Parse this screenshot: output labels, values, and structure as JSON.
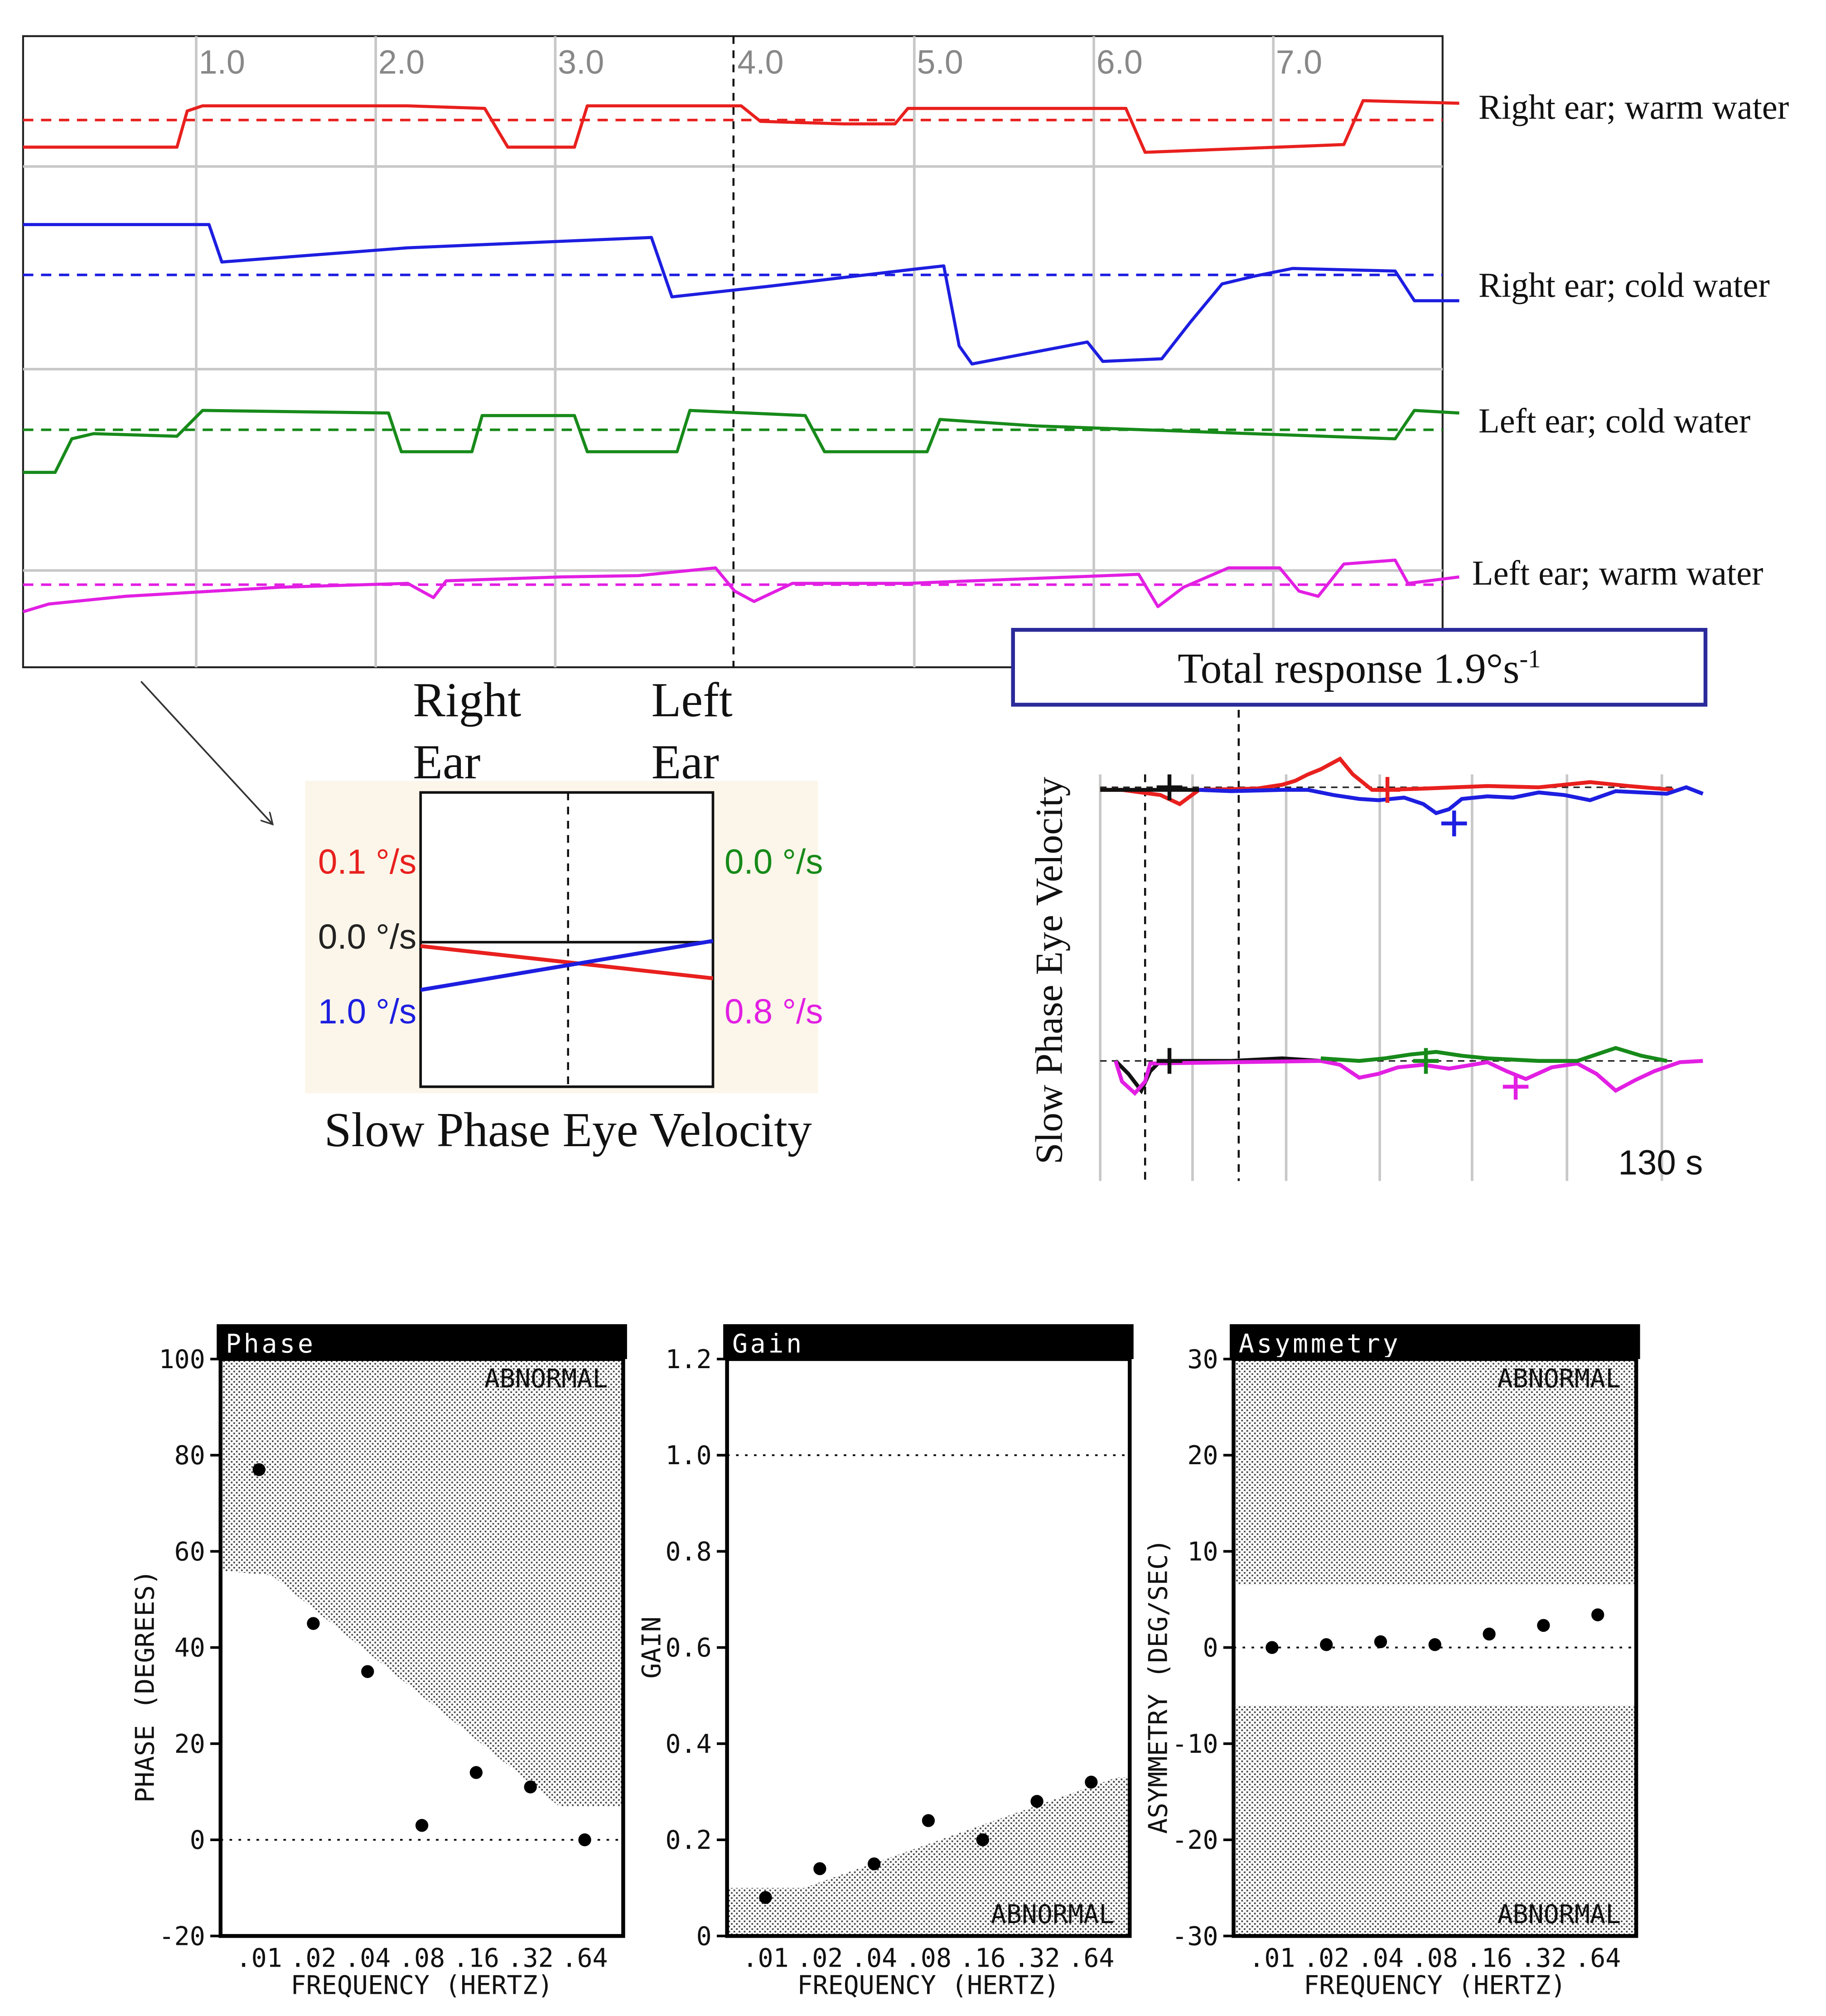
{
  "caloric_traces": {
    "x_ticks": [
      "1.0",
      "2.0",
      "3.0",
      "4.0",
      "5.0",
      "6.0",
      "7.0"
    ],
    "marker_at": "4.0",
    "traces": [
      {
        "label": "Right ear; warm water",
        "color": "#e8201e",
        "baseline_y": 93,
        "pts": [
          [
            0,
            114
          ],
          [
            120,
            114
          ],
          [
            128,
            86
          ],
          [
            140,
            82
          ],
          [
            300,
            82
          ],
          [
            360,
            84
          ],
          [
            378,
            114
          ],
          [
            430,
            114
          ],
          [
            440,
            82
          ],
          [
            560,
            82
          ],
          [
            575,
            94
          ],
          [
            640,
            96
          ],
          [
            680,
            96
          ],
          [
            690,
            84
          ],
          [
            860,
            84
          ],
          [
            875,
            118
          ],
          [
            1030,
            112
          ],
          [
            1045,
            78
          ],
          [
            1120,
            80
          ]
        ]
      },
      {
        "label": "Right ear; cold water",
        "color": "#1d1ee0",
        "baseline_y": 213,
        "pts": [
          [
            0,
            174
          ],
          [
            145,
            174
          ],
          [
            155,
            203
          ],
          [
            300,
            192
          ],
          [
            490,
            184
          ],
          [
            506,
            230
          ],
          [
            580,
            222
          ],
          [
            700,
            208
          ],
          [
            718,
            206
          ],
          [
            730,
            268
          ],
          [
            740,
            282
          ],
          [
            830,
            265
          ],
          [
            842,
            280
          ],
          [
            888,
            278
          ],
          [
            910,
            250
          ],
          [
            935,
            220
          ],
          [
            960,
            214
          ],
          [
            990,
            208
          ],
          [
            1070,
            210
          ],
          [
            1085,
            233
          ],
          [
            1120,
            233
          ]
        ]
      },
      {
        "label": "Left ear; cold water",
        "color": "#178a1a",
        "baseline_y": 333,
        "pts": [
          [
            0,
            366
          ],
          [
            25,
            366
          ],
          [
            38,
            340
          ],
          [
            55,
            336
          ],
          [
            120,
            338
          ],
          [
            140,
            318
          ],
          [
            285,
            320
          ],
          [
            295,
            350
          ],
          [
            350,
            350
          ],
          [
            358,
            322
          ],
          [
            430,
            322
          ],
          [
            440,
            350
          ],
          [
            510,
            350
          ],
          [
            520,
            318
          ],
          [
            610,
            322
          ],
          [
            625,
            350
          ],
          [
            705,
            350
          ],
          [
            715,
            325
          ],
          [
            790,
            330
          ],
          [
            1070,
            340
          ],
          [
            1085,
            318
          ],
          [
            1120,
            320
          ]
        ]
      },
      {
        "label": "Left ear; warm water",
        "color": "#e21fe3",
        "baseline_y": 453,
        "pts": [
          [
            0,
            474
          ],
          [
            20,
            468
          ],
          [
            80,
            462
          ],
          [
            200,
            455
          ],
          [
            300,
            452
          ],
          [
            320,
            463
          ],
          [
            330,
            450
          ],
          [
            420,
            447
          ],
          [
            480,
            446
          ],
          [
            540,
            440
          ],
          [
            555,
            458
          ],
          [
            570,
            466
          ],
          [
            600,
            452
          ],
          [
            690,
            452
          ],
          [
            870,
            445
          ],
          [
            885,
            470
          ],
          [
            905,
            455
          ],
          [
            940,
            440
          ],
          [
            980,
            440
          ],
          [
            995,
            458
          ],
          [
            1010,
            462
          ],
          [
            1030,
            437
          ],
          [
            1070,
            434
          ],
          [
            1080,
            452
          ],
          [
            1120,
            447
          ]
        ]
      }
    ]
  },
  "arrow_panel": {
    "left_header_line1": "Right",
    "left_header_line2": "Ear",
    "right_header_line1": "Left",
    "right_header_line2": "Ear",
    "left_labels": [
      {
        "text": "0.1 °/s",
        "color": "#e8201e"
      },
      {
        "text": "0.0 °/s",
        "color": "#222222"
      },
      {
        "text": "1.0 °/s",
        "color": "#1d1ee0"
      }
    ],
    "right_labels": [
      {
        "text": "0.0 °/s",
        "color": "#178a1a"
      },
      {
        "text": "0.8 °/s",
        "color": "#e21fe3"
      }
    ],
    "caption": "Slow Phase Eye Velocity"
  },
  "total_response": {
    "title_text": "Total response  1.9°s",
    "title_sup": "-1",
    "y_label": "Slow Phase Eye Velocity",
    "time_label": "130 s"
  },
  "chart_data": [
    {
      "type": "scatter",
      "title": "Phase",
      "xlabel": "FREQUENCY (HERTZ)",
      "ylabel": "PHASE (DEGREES)",
      "categories": [
        ".01",
        ".02",
        ".04",
        ".08",
        ".16",
        ".32",
        ".64"
      ],
      "values": [
        77,
        45,
        35,
        3,
        14,
        11,
        0
      ],
      "yticks": [
        "100",
        "80",
        "60",
        "40",
        "20",
        "0",
        "-20"
      ],
      "ylim": [
        -20,
        100
      ],
      "abnormal_label": "ABNORMAL",
      "abnormal_region": "above"
    },
    {
      "type": "scatter",
      "title": "Gain",
      "xlabel": "FREQUENCY (HERTZ)",
      "ylabel": "GAIN",
      "categories": [
        ".01",
        ".02",
        ".04",
        ".08",
        ".16",
        ".32",
        ".64"
      ],
      "values": [
        0.08,
        0.14,
        0.15,
        0.24,
        0.2,
        0.28,
        0.32
      ],
      "yticks": [
        "1.2",
        "1.0",
        "0.8",
        "0.6",
        "0.4",
        "0.2",
        "0"
      ],
      "ylim": [
        0,
        1.2
      ],
      "abnormal_label": "ABNORMAL",
      "abnormal_region": "below"
    },
    {
      "type": "scatter",
      "title": "Asymmetry",
      "xlabel": "FREQUENCY (HERTZ)",
      "ylabel": "ASYMMETRY (DEG/SEC)",
      "categories": [
        ".01",
        ".02",
        ".04",
        ".08",
        ".16",
        ".32",
        ".64"
      ],
      "values": [
        0,
        0.3,
        0.6,
        0.3,
        1.4,
        2.3,
        3.4
      ],
      "yticks": [
        "30",
        "20",
        "10",
        "0",
        "-10",
        "-20",
        "-30"
      ],
      "ylim": [
        -30,
        30
      ],
      "abnormal_label_top": "ABNORMAL",
      "abnormal_label_bottom": "ABNORMAL",
      "abnormal_region": "|value| > 6.5"
    }
  ]
}
